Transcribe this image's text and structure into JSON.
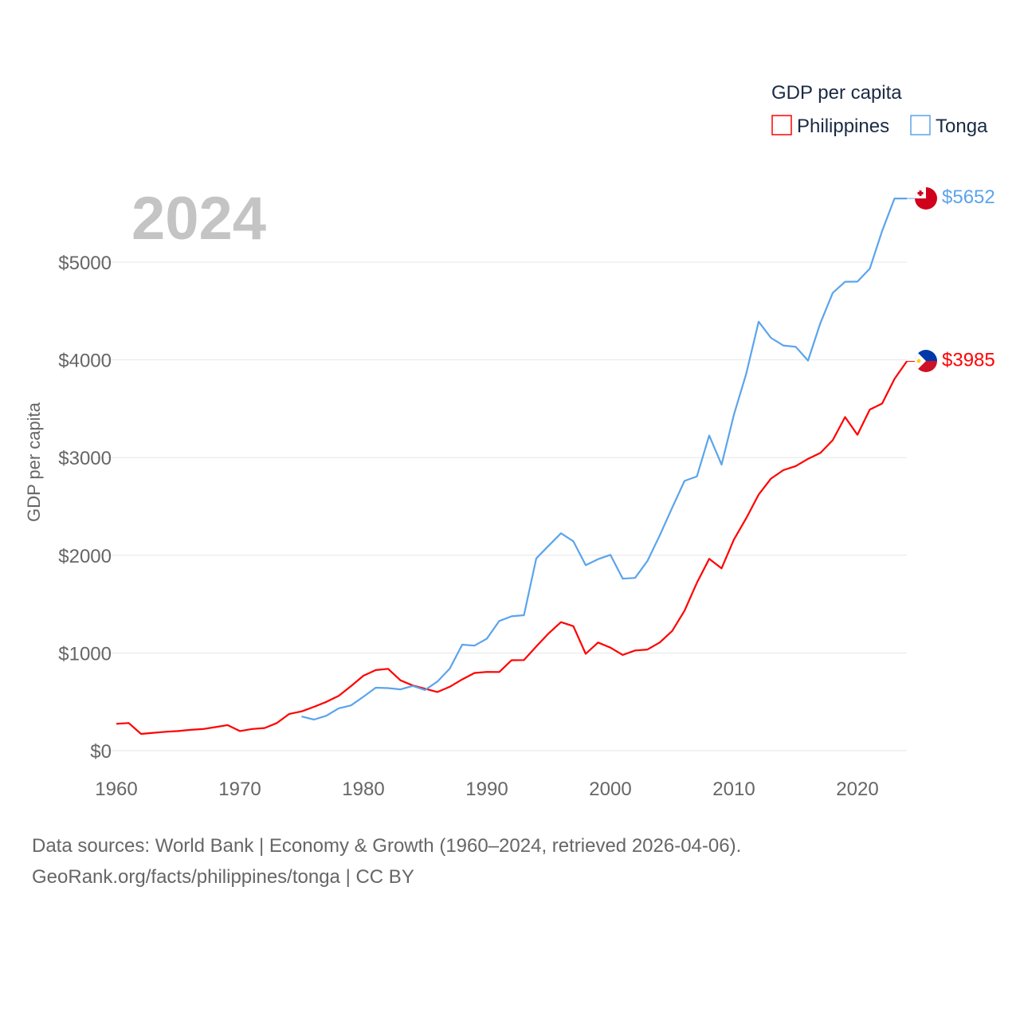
{
  "chart_data": {
    "type": "line",
    "title": "GDP per capita",
    "year_label": "2024",
    "xlabel": "",
    "ylabel": "GDP per capita",
    "xlim": [
      1960,
      2024
    ],
    "ylim": [
      0,
      5700
    ],
    "x_ticks": [
      "1960",
      "1970",
      "1980",
      "1990",
      "2000",
      "2010",
      "2020"
    ],
    "y_ticks": [
      "$0",
      "$1000",
      "$2000",
      "$3000",
      "$4000",
      "$5000"
    ],
    "grid": true,
    "legend_placement": "top-right",
    "series": [
      {
        "name": "Philippines",
        "color": "#ff0000",
        "end_label": "$3985",
        "start_year": 1960,
        "values": [
          275,
          283,
          171,
          183,
          193,
          201,
          213,
          221,
          241,
          262,
          201,
          222,
          232,
          283,
          376,
          402,
          449,
          499,
          561,
          661,
          767,
          825,
          838,
          720,
          667,
          634,
          600,
          654,
          729,
          795,
          806,
          805,
          926,
          927,
          1066,
          1201,
          1316,
          1274,
          991,
          1107,
          1055,
          980,
          1025,
          1035,
          1108,
          1225,
          1432,
          1718,
          1963,
          1866,
          2161,
          2380,
          2621,
          2785,
          2871,
          2913,
          2987,
          3047,
          3178,
          3414,
          3233,
          3491,
          3553,
          3805,
          3985
        ]
      },
      {
        "name": "Tonga",
        "color": "#5ba4ec",
        "end_label": "$5652",
        "start_year": 1975,
        "values": [
          350,
          318,
          357,
          433,
          463,
          551,
          644,
          640,
          627,
          662,
          621,
          708,
          841,
          1085,
          1075,
          1147,
          1327,
          1375,
          1387,
          1968,
          2098,
          2225,
          2143,
          1899,
          1960,
          2004,
          1760,
          1768,
          1942,
          2205,
          2486,
          2761,
          2807,
          3226,
          2927,
          3440,
          3860,
          4391,
          4225,
          4147,
          4134,
          3993,
          4377,
          4685,
          4799,
          4801,
          4934,
          5320,
          5652,
          5652
        ]
      }
    ]
  },
  "footer": {
    "line1": "Data sources: World Bank | Economy & Growth (1960–2024, retrieved 2026-04-06).",
    "line2": "GeoRank.org/facts/philippines/tonga | CC BY"
  }
}
